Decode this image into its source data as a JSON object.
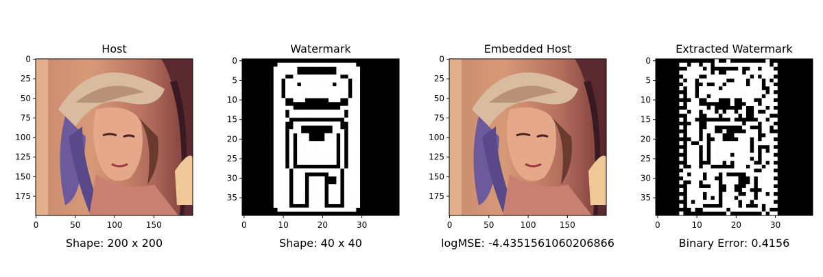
{
  "chart_data": [
    {
      "type": "image",
      "title": "Host",
      "xlabel": "Shape: 200 x 200",
      "x_ticks": [
        0,
        50,
        100,
        150
      ],
      "y_ticks": [
        0,
        25,
        50,
        75,
        100,
        125,
        150,
        175
      ],
      "xlim": [
        0,
        200
      ],
      "ylim": [
        200,
        0
      ],
      "image_kind": "color photo (portrait of a woman with a hat)"
    },
    {
      "type": "heatmap",
      "title": "Watermark",
      "xlabel": "Shape: 40 x 40",
      "x_ticks": [
        0,
        10,
        20,
        30
      ],
      "y_ticks": [
        0,
        5,
        10,
        15,
        20,
        25,
        30,
        35
      ],
      "xlim": [
        0,
        40
      ],
      "ylim": [
        40,
        0
      ],
      "colormap": "binary (black=0, white=1)"
    },
    {
      "type": "image",
      "title": "Embedded Host",
      "xlabel": "logMSE: -4.4351561060206866",
      "x_ticks": [
        0,
        50,
        100,
        150
      ],
      "y_ticks": [
        0,
        25,
        50,
        75,
        100,
        125,
        150,
        175
      ],
      "xlim": [
        0,
        200
      ],
      "ylim": [
        200,
        0
      ],
      "image_kind": "color photo (portrait of a woman with a hat)"
    },
    {
      "type": "heatmap",
      "title": "Extracted Watermark",
      "xlabel": "Binary Error: 0.4156",
      "x_ticks": [
        0,
        10,
        20,
        30
      ],
      "y_ticks": [
        0,
        5,
        10,
        15,
        20,
        25,
        30,
        35
      ],
      "xlim": [
        0,
        40
      ],
      "ylim": [
        40,
        0
      ],
      "colormap": "binary (black=0, white=1)"
    }
  ]
}
